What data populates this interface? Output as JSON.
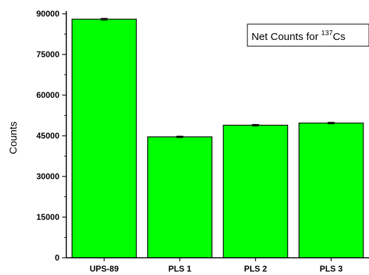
{
  "chart_data": {
    "type": "bar",
    "categories": [
      "UPS-89",
      "PLS 1",
      "PLS 2",
      "PLS 3"
    ],
    "values": [
      88000,
      44600,
      48900,
      49700
    ],
    "errors": [
      350,
      300,
      300,
      300
    ],
    "ylabel": "Counts",
    "xlabel": "",
    "ylim": [
      0,
      90000
    ],
    "yticks": [
      "0",
      "15000",
      "30000",
      "45000",
      "60000",
      "75000",
      "90000"
    ],
    "ytick_values": [
      0,
      15000,
      30000,
      45000,
      60000,
      75000,
      90000
    ],
    "annotation": {
      "prefix": "Net Counts for ",
      "superscript": "137",
      "suffix": "Cs"
    },
    "bar_color": "#00ff00",
    "grid": false
  }
}
